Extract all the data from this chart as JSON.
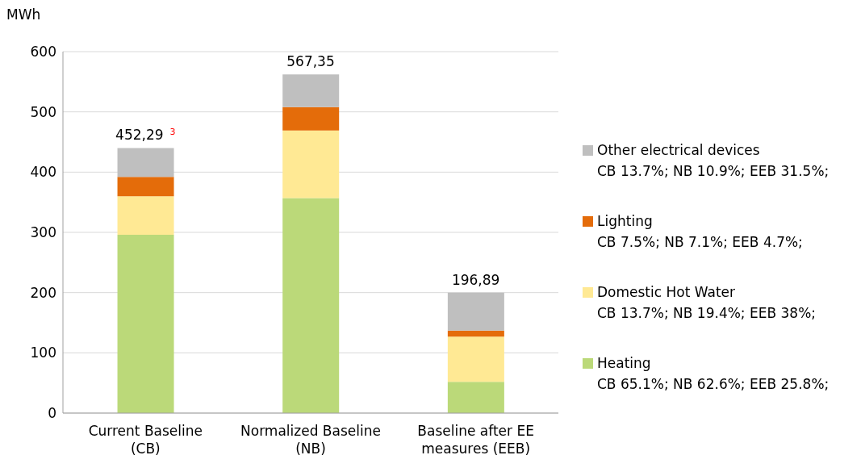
{
  "chart_data": {
    "type": "bar",
    "stacked": true,
    "ylabel": "MWh",
    "categories": [
      "Current Baseline (CB)",
      "Normalized Baseline (NB)",
      "Baseline after EE measures (EEB)"
    ],
    "series": [
      {
        "name": "Heating",
        "color": "#bbd979",
        "values": [
          296,
          357,
          52
        ]
      },
      {
        "name": "Domestic Hot Water",
        "color": "#ffe994",
        "values": [
          64,
          112,
          75
        ]
      },
      {
        "name": "Lighting",
        "color": "#e46c0a",
        "values": [
          32,
          39,
          10
        ]
      },
      {
        "name": "Other electrical devices",
        "color": "#bfbfbf",
        "values": [
          48,
          54,
          63
        ]
      }
    ],
    "annotations": [
      "CB 65.1%;  NB 62.6%;  EEB 25.8%;",
      "CB 13.7%;  NB 19.4%;  EEB 38%;",
      "CB 7.5%;  NB 7.1%;  EEB 4.7%;",
      "CB 13.7%;  NB 10.9%;  EEB 31.5%;",
      {
        "text": "452,29",
        "x": "Current Baseline (CB)",
        "y": 440
      },
      {
        "text": "567,35",
        "x": "Normalized Baseline (NB)",
        "y": 562
      },
      {
        "text": "196,89",
        "x": "Baseline after EE measures (EEB)",
        "y": 200
      },
      "3"
    ],
    "ylim": [
      0,
      600
    ],
    "yticks": [
      0,
      100,
      200,
      300,
      400,
      500,
      600
    ],
    "grid": "y",
    "legend": "right"
  }
}
